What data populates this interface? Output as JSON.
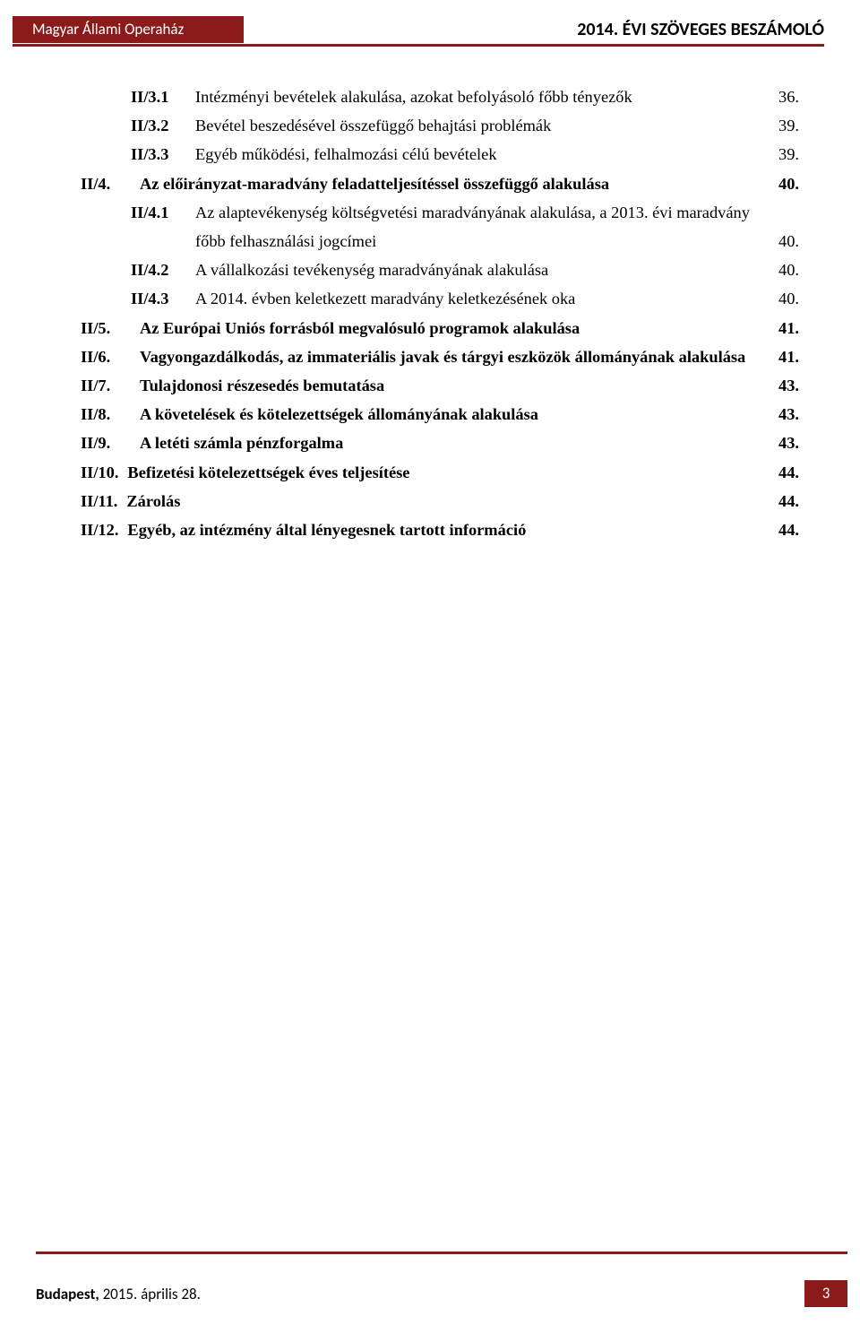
{
  "header": {
    "left": "Magyar Állami Operaház",
    "right": "2014. ÉVI SZÖVEGES BESZÁMOLÓ"
  },
  "toc": [
    {
      "level": 1,
      "num": "II/3.1",
      "text": "Intézményi bevételek alakulása, azokat befolyásoló főbb tényezők",
      "page": "36."
    },
    {
      "level": 1,
      "num": "II/3.2",
      "text": "Bevétel beszedésével összefüggő behajtási problémák",
      "page": "39."
    },
    {
      "level": 1,
      "num": "II/3.3",
      "text": "Egyéb működési, felhalmozási célú bevételek",
      "page": "39."
    },
    {
      "level": 0,
      "num": "II/4.",
      "text": "Az előirányzat-maradvány feladatteljesítéssel összefüggő alakulása",
      "page": "40."
    },
    {
      "level": 1,
      "num": "II/4.1",
      "text": "Az alaptevékenység költségvetési maradványának alakulása, a 2013. évi maradvány főbb felhasználási jogcímei",
      "page": "40.",
      "wrap": true
    },
    {
      "level": 1,
      "num": "II/4.2",
      "text": "A vállalkozási tevékenység maradványának alakulása",
      "page": "40."
    },
    {
      "level": 1,
      "num": "II/4.3",
      "text": "A 2014. évben keletkezett maradvány keletkezésének oka",
      "page": "40."
    },
    {
      "level": 0,
      "num": "II/5.",
      "text": "Az Európai Uniós forrásból megvalósuló programok alakulása",
      "page": "41."
    },
    {
      "level": 0,
      "num": "II/6.",
      "text": "Vagyongazdálkodás, az immateriális javak és tárgyi eszközök állományának alakulása",
      "page": "41."
    },
    {
      "level": 0,
      "num": "II/7.",
      "text": "Tulajdonosi részesedés bemutatása",
      "page": "43."
    },
    {
      "level": 0,
      "num": "II/8.",
      "text": "A követelések és kötelezettségek állományának alakulása",
      "page": "43."
    },
    {
      "level": 0,
      "num": "II/9.",
      "text": "A letéti számla pénzforgalma",
      "page": "43."
    },
    {
      "level": 0,
      "num": "II/10.",
      "text": "Befizetési kötelezettségek éves teljesítése",
      "page": "44.",
      "inline": true
    },
    {
      "level": 0,
      "num": "II/11.",
      "text": "Zárolás",
      "page": "44.",
      "inline": true
    },
    {
      "level": 0,
      "num": "II/12.",
      "text": "Egyéb, az intézmény által lényegesnek tartott információ",
      "page": "44.",
      "inline": true
    }
  ],
  "footer": {
    "city": "Budapest,",
    "date": "2015. április 28.",
    "page": "3"
  },
  "colors": {
    "brand": "#8b1a1a",
    "text": "#000000",
    "bg": "#ffffff",
    "header_text": "#ffffff"
  }
}
